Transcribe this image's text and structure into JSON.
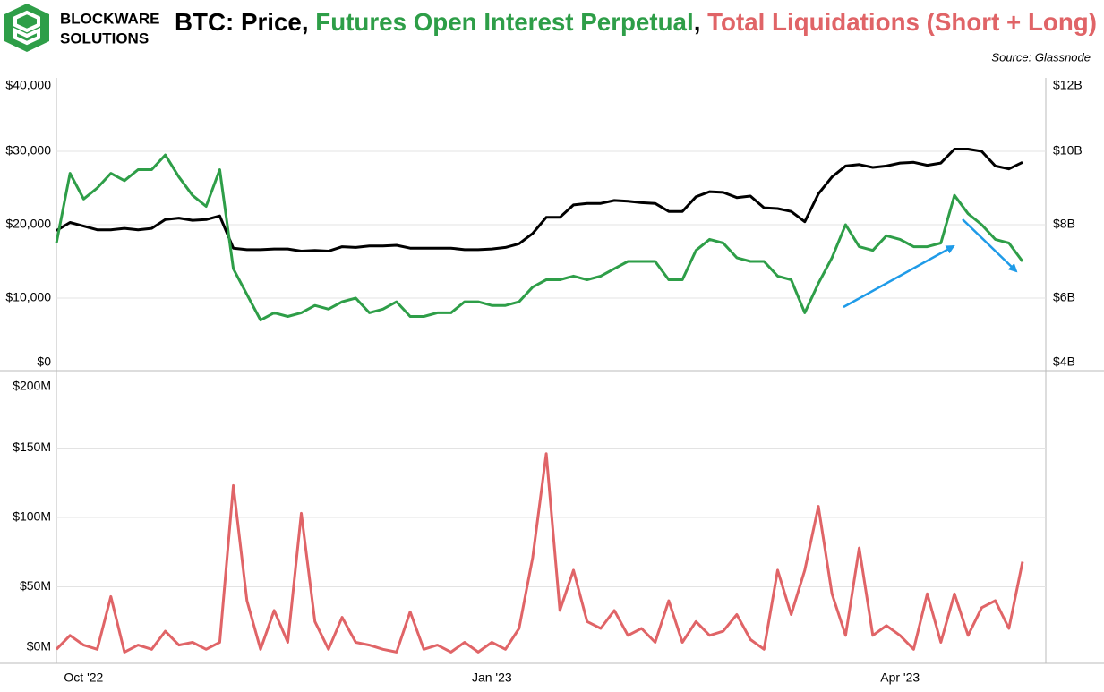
{
  "logo": {
    "lines": [
      "BLOCKWARE",
      "SOLUTIONS"
    ]
  },
  "chart_data": {
    "type": "line",
    "title": [
      {
        "text": "BTC: Price",
        "color": "#000000"
      },
      {
        "text": ", ",
        "color": "#000000"
      },
      {
        "text": "Futures Open Interest Perpetual",
        "color": "#2e9e48"
      },
      {
        "text": ", ",
        "color": "#000000"
      },
      {
        "text": "Total Liquidations (Short + Long)",
        "color": "#e06467"
      }
    ],
    "subtitle": "Source: Glassnode",
    "grid": true,
    "categories": [
      null,
      null,
      "Oct '22",
      null,
      null,
      null,
      null,
      null,
      null,
      null,
      null,
      null,
      null,
      null,
      null,
      null,
      null,
      null,
      null,
      null,
      null,
      null,
      null,
      null,
      null,
      null,
      null,
      null,
      null,
      null,
      null,
      null,
      "Jan '23",
      null,
      null,
      null,
      null,
      null,
      null,
      null,
      null,
      null,
      null,
      null,
      null,
      null,
      null,
      null,
      null,
      null,
      null,
      null,
      null,
      null,
      null,
      null,
      null,
      null,
      null,
      null,
      null,
      null,
      "Apr '23",
      null,
      null,
      null,
      null,
      null,
      null,
      null,
      null,
      null
    ],
    "ylim": [
      0,
      40000
    ],
    "yticks": [
      {
        "value": 0,
        "label": "$0"
      },
      {
        "value": 10000,
        "label": "$10,000"
      },
      {
        "value": 20000,
        "label": "$20,000"
      },
      {
        "value": 30000,
        "label": "$30,000"
      },
      {
        "value": 40000,
        "label": "$40,000"
      }
    ],
    "y2lim": [
      4,
      12
    ],
    "y2ticks": [
      {
        "value": 4,
        "label": "$4B"
      },
      {
        "value": 6,
        "label": "$6B"
      },
      {
        "value": 8,
        "label": "$8B"
      },
      {
        "value": 10,
        "label": "$10B"
      },
      {
        "value": 12,
        "label": "$12B"
      }
    ],
    "y3lim": [
      0,
      200
    ],
    "y3ticks": [
      {
        "value": 0,
        "label": "$0M"
      },
      {
        "value": 50,
        "label": "$50M"
      },
      {
        "value": 100,
        "label": "$100M"
      },
      {
        "value": 150,
        "label": "$150M"
      },
      {
        "value": 200,
        "label": "$200M"
      }
    ],
    "series": [
      {
        "color": "#000000",
        "axis": "y",
        "values": [
          19200,
          20300,
          19800,
          19300,
          19300,
          19500,
          19300,
          19500,
          20700,
          20900,
          20600,
          20700,
          21200,
          16800,
          16600,
          16600,
          16700,
          16700,
          16400,
          16500,
          16400,
          17000,
          16900,
          17100,
          17100,
          17200,
          16800,
          16800,
          16800,
          16800,
          16600,
          16600,
          16700,
          16900,
          17400,
          18800,
          21000,
          21000,
          22700,
          22900,
          22900,
          23300,
          23200,
          23000,
          22900,
          21800,
          21800,
          23800,
          24500,
          24400,
          23700,
          23900,
          22300,
          22200,
          21800,
          20400,
          24200,
          26500,
          28000,
          28200,
          27800,
          28000,
          28400,
          28500,
          28100,
          28400,
          30300,
          30300,
          30000,
          28000,
          27600,
          28500
        ]
      },
      {
        "color": "#2e9e48",
        "axis": "y2",
        "values": [
          7.5,
          9.4,
          8.7,
          9.0,
          9.4,
          9.2,
          9.5,
          9.5,
          9.9,
          9.3,
          8.8,
          8.5,
          9.5,
          6.8,
          6.1,
          5.4,
          5.6,
          5.5,
          5.6,
          5.8,
          5.7,
          5.9,
          6.0,
          5.6,
          5.7,
          5.9,
          5.5,
          5.5,
          5.6,
          5.6,
          5.9,
          5.9,
          5.8,
          5.8,
          5.9,
          6.3,
          6.5,
          6.5,
          6.6,
          6.5,
          6.6,
          6.8,
          7.0,
          7.0,
          7.0,
          6.5,
          6.5,
          7.3,
          7.6,
          7.5,
          7.1,
          7.0,
          7.0,
          6.6,
          6.5,
          5.6,
          6.4,
          7.1,
          8.0,
          7.4,
          7.3,
          7.7,
          7.6,
          7.4,
          7.4,
          7.5,
          8.8,
          8.3,
          8.0,
          7.6,
          7.5,
          7.0
        ]
      },
      {
        "color": "#e06467",
        "axis": "y3",
        "values": [
          5,
          15,
          8,
          5,
          43,
          3,
          8,
          5,
          18,
          8,
          10,
          5,
          10,
          123,
          40,
          5,
          33,
          10,
          103,
          25,
          5,
          28,
          10,
          8,
          5,
          3,
          32,
          5,
          8,
          3,
          10,
          3,
          10,
          5,
          20,
          71,
          146,
          33,
          62,
          25,
          20,
          33,
          15,
          20,
          10,
          40,
          10,
          25,
          15,
          18,
          30,
          12,
          5,
          62,
          30,
          62,
          108,
          45,
          15,
          78,
          15,
          22,
          15,
          5,
          45,
          10,
          45,
          15,
          35,
          40,
          20,
          68
        ]
      }
    ]
  }
}
